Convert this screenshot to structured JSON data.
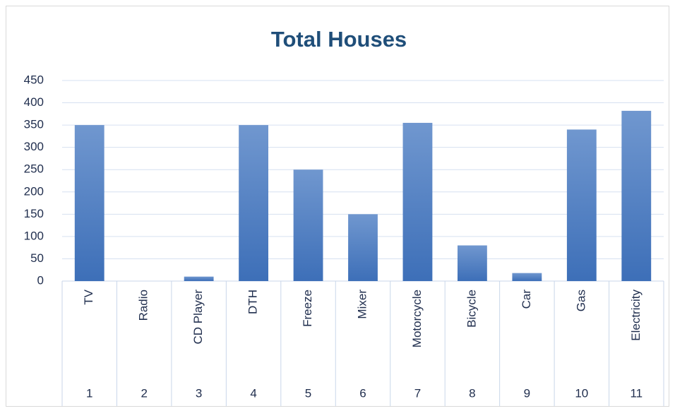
{
  "chart_data": {
    "type": "bar",
    "title": "Total Houses",
    "categories": [
      "TV",
      "Radio",
      "CD Player",
      "DTH",
      "Freeze",
      "Mixer",
      "Motorcycle",
      "Bicycle",
      "Car",
      "Gas",
      "Electricity"
    ],
    "category_numbers": [
      "1",
      "2",
      "3",
      "4",
      "5",
      "6",
      "7",
      "8",
      "9",
      "10",
      "11"
    ],
    "values": [
      350,
      0,
      10,
      350,
      250,
      150,
      355,
      80,
      18,
      340,
      382
    ],
    "color": "#4a7cc2",
    "ylim": [
      0,
      450
    ],
    "yticks": [
      0,
      50,
      100,
      150,
      200,
      250,
      300,
      350,
      400,
      450
    ],
    "grid": true
  }
}
